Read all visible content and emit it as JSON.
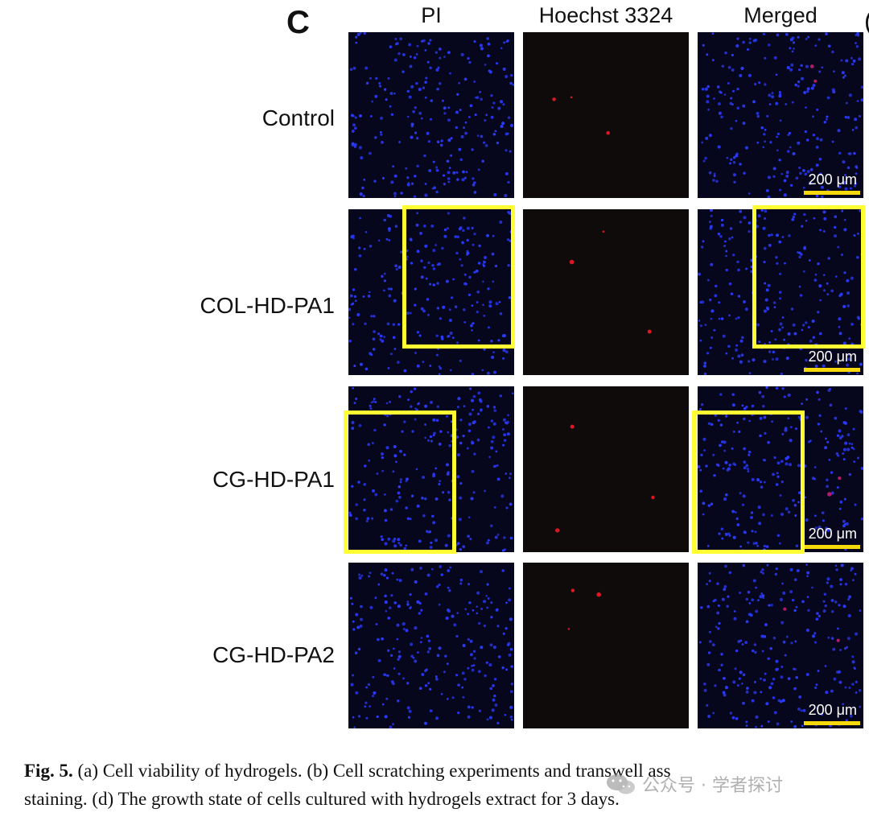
{
  "figure": {
    "panel_letter": "C",
    "clipped_next_panel": "(",
    "columns": [
      "PI",
      "Hoechst 3324",
      "Merged"
    ],
    "rows": [
      "Control",
      "COL-HD-PA1",
      "CG-HD-PA1",
      "CG-HD-PA2"
    ],
    "scale_bar_label": "200 μm",
    "colors": {
      "cell_blue": "#2b3bff",
      "background_blue": "#06061c",
      "background_dark": "#0f0b0b",
      "dead_cell_red": "#ff1a2a",
      "roi_yellow": "#ffff33",
      "scale_bar_yellow": "#f5d90a"
    }
  },
  "caption": {
    "label": "Fig. 5.",
    "line1": "(a) Cell viability of hydrogels. (b) Cell scratching experiments and transwell ass",
    "line2": "staining. (d) The growth state of cells cultured with hydrogels extract for 3 days."
  },
  "watermark": {
    "text": "公众号 · 学者探讨",
    "icon": "wechat-icon"
  }
}
